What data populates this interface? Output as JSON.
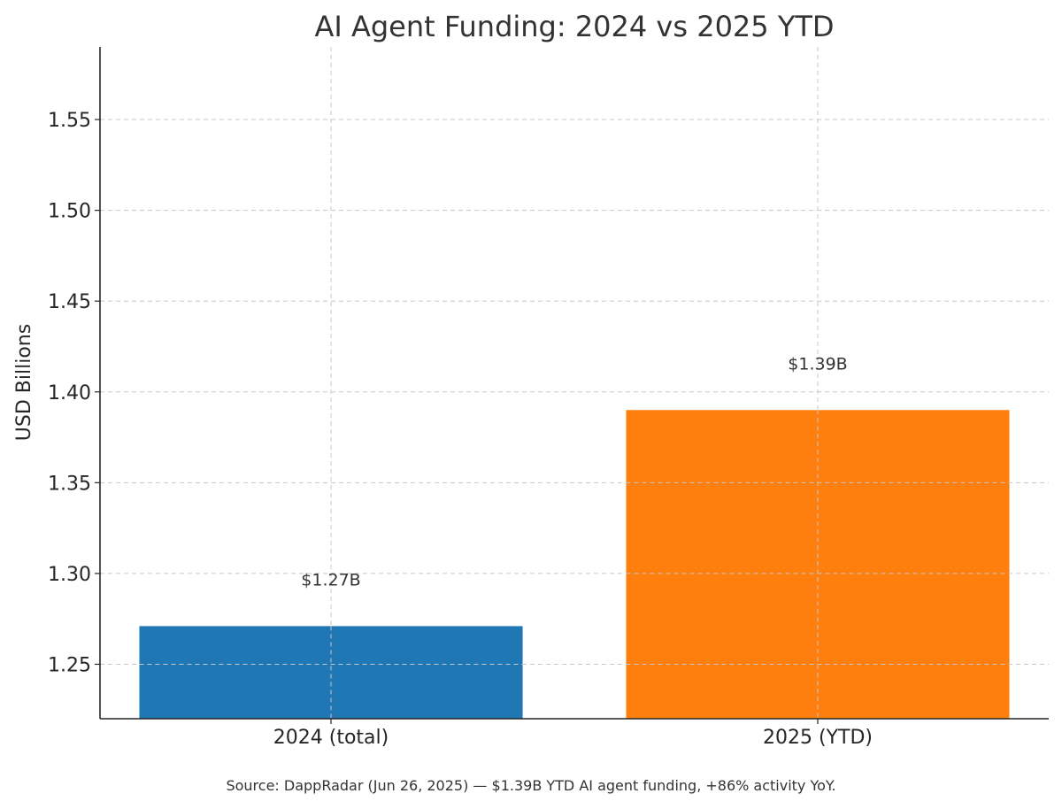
{
  "chart_data": {
    "type": "bar",
    "title": "AI Agent Funding: 2024 vs 2025 YTD",
    "xlabel": "",
    "ylabel": "USD Billions",
    "categories": [
      "2024 (total)",
      "2025 (YTD)"
    ],
    "values": [
      1.271,
      1.39
    ],
    "data_labels": [
      "$1.27B",
      "$1.39B"
    ],
    "colors": [
      "#1f77b4",
      "#ff7f0e"
    ],
    "ylim": [
      1.22,
      1.59
    ],
    "yticks": [
      1.25,
      1.3,
      1.35,
      1.4,
      1.45,
      1.5,
      1.55
    ],
    "ytick_labels": [
      "1.25",
      "1.30",
      "1.35",
      "1.40",
      "1.45",
      "1.50",
      "1.55"
    ],
    "grid": true,
    "legend": "none",
    "footnote": "Source: DappRadar (Jun 26, 2025) — $1.39B YTD AI agent funding, +86% activity YoY."
  }
}
